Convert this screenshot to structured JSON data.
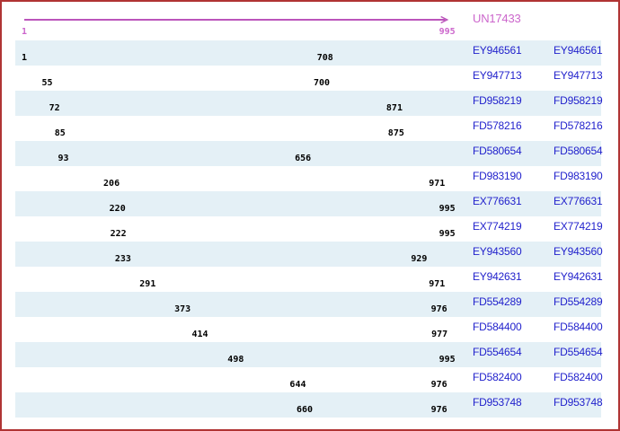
{
  "colors": {
    "border": "#b03434",
    "background": "#ffffff",
    "band": "#e4f0f6",
    "band_alt": "#ffffff",
    "accession_blue": "#2222cc",
    "reference_magenta_text": "#cc66cc",
    "reference_magenta_line": "#bb55bb",
    "arrow_black": "#000000",
    "coordinate_text": "#000000"
  },
  "chart_data": {
    "type": "alignment-track",
    "x_range": [
      1,
      995
    ],
    "legend_position": "right",
    "grid": false,
    "reference": {
      "label": "UN17433",
      "start": 1,
      "end": 995,
      "strand": "+"
    },
    "rows": [
      {
        "label": "EY946561",
        "start": 1,
        "end": 708,
        "strand": "+"
      },
      {
        "label": "EY947713",
        "start": 55,
        "end": 700,
        "strand": "+"
      },
      {
        "label": "FD958219",
        "start": 72,
        "end": 871,
        "strand": "+"
      },
      {
        "label": "FD578216",
        "start": 85,
        "end": 875,
        "strand": "+"
      },
      {
        "label": "FD580654",
        "start": 93,
        "end": 656,
        "strand": "+"
      },
      {
        "label": "FD983190",
        "start": 206,
        "end": 971,
        "strand": "-"
      },
      {
        "label": "EX776631",
        "start": 220,
        "end": 995,
        "strand": "-"
      },
      {
        "label": "EX774219",
        "start": 222,
        "end": 995,
        "strand": "-"
      },
      {
        "label": "EY943560",
        "start": 233,
        "end": 929,
        "strand": "-"
      },
      {
        "label": "EY942631",
        "start": 291,
        "end": 971,
        "strand": "-"
      },
      {
        "label": "FD554289",
        "start": 373,
        "end": 976,
        "strand": "-"
      },
      {
        "label": "FD584400",
        "start": 414,
        "end": 977,
        "strand": "-"
      },
      {
        "label": "FD554654",
        "start": 498,
        "end": 995,
        "strand": "-"
      },
      {
        "label": "FD582400",
        "start": 644,
        "end": 976,
        "strand": "-"
      },
      {
        "label": "FD953748",
        "start": 660,
        "end": 976,
        "strand": "-"
      }
    ]
  }
}
